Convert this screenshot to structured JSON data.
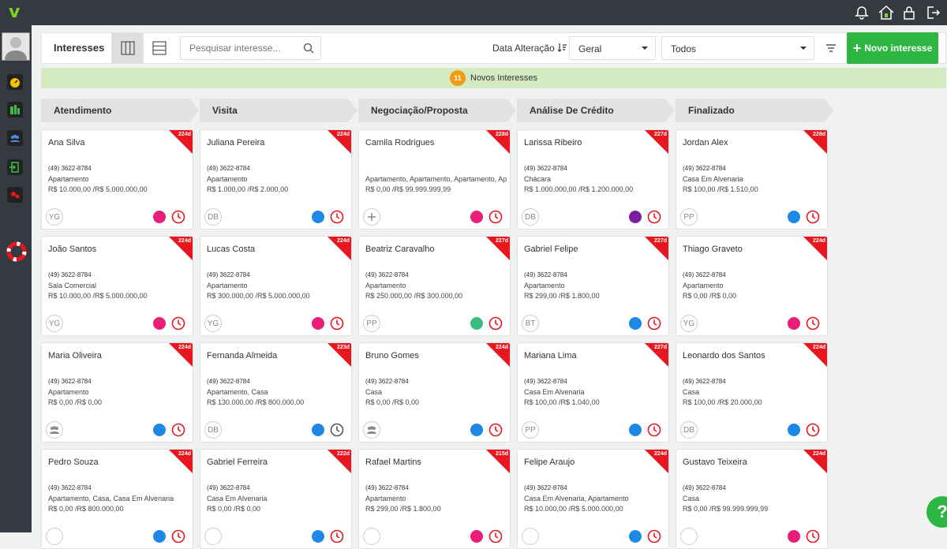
{
  "app": {
    "logo_text": "v"
  },
  "toolbar": {
    "title": "Interesses",
    "search_placeholder": "Pesquisar interesse...",
    "sort_label": "Data Alteração",
    "select_geral": "Geral",
    "select_todos": "Todos",
    "new_button_label": "Novo interesse",
    "new_button_plus": "+"
  },
  "banner": {
    "count": "11",
    "text": "Novos Interesses"
  },
  "columns": [
    {
      "title": "Atendimento"
    },
    {
      "title": "Visita"
    },
    {
      "title": "Negociação/Proposta"
    },
    {
      "title": "Análise De Crédito"
    },
    {
      "title": "Finalizado"
    }
  ],
  "cards": [
    {
      "name": "Ana Silva",
      "phone": "(49) 3622-8784",
      "type": "Apartamento",
      "price": "R$ 10.000,00 /R$ 5.000.000,00",
      "days": "224d",
      "initials": "YG",
      "dot": "#e91e78",
      "clock": "red"
    },
    {
      "name": "Juliana Pereira",
      "phone": "(49) 3622-8784",
      "type": "Apartamento",
      "price": "R$ 1.000,00 /R$ 2.000,00",
      "days": "224d",
      "initials": "DB",
      "dot": "#1e88e5",
      "clock": "red"
    },
    {
      "name": "Camila Rodrigues",
      "phone": "",
      "type": "Apartamento, Apartamento, Apartamento, Ap",
      "price": "R$ 0,00 /R$ 99.999.999,99",
      "days": "228d",
      "initials": "+",
      "dot": "#e91e78",
      "clock": "red"
    },
    {
      "name": "Larissa Ribeiro",
      "phone": "(49) 3622-8784",
      "type": "Chácara",
      "price": "R$ 1.000.000,00 /R$ 1.200.000,00",
      "days": "227d",
      "initials": "DB",
      "dot": "#7b1fa2",
      "clock": "red"
    },
    {
      "name": "Jordan Alex",
      "phone": "(49) 3622-8784",
      "type": "Casa Em Alvenaria",
      "price": "R$ 100,00 /R$ 1.510,00",
      "days": "228d",
      "initials": "PP",
      "dot": "#1e88e5",
      "clock": "red"
    },
    {
      "name": "João Santos",
      "phone": "(49) 3622-8784",
      "type": "Sala Comercial",
      "price": "R$ 10.000,00 /R$ 5.000.000,00",
      "days": "224d",
      "initials": "YG",
      "dot": "#e91e78",
      "clock": "red"
    },
    {
      "name": "Lucas Costa",
      "phone": "(49) 3622-8784",
      "type": "Apartamento",
      "price": "R$ 300.000,00 /R$ 5.000.000,00",
      "days": "224d",
      "initials": "YG",
      "dot": "#e91e78",
      "clock": "red"
    },
    {
      "name": "Beatriz Caravalho",
      "phone": "(49) 3622-8784",
      "type": "Apartamento",
      "price": "R$ 250.000,00 /R$ 300.000,00",
      "days": "227d",
      "initials": "PP",
      "dot": "#3dbb7e",
      "clock": "red"
    },
    {
      "name": "Gabriel Felipe",
      "phone": "(49) 3622-8784",
      "type": "Apartamento",
      "price": "R$ 299,00 /R$ 1.800,00",
      "days": "227d",
      "initials": "BT",
      "dot": "#1e88e5",
      "clock": "red"
    },
    {
      "name": "Thiago Graveto",
      "phone": "(49) 3622-8784",
      "type": "Apartamento",
      "price": "R$ 0,00 /R$ 0,00",
      "days": "224d",
      "initials": "YG",
      "dot": "#e91e78",
      "clock": "red"
    },
    {
      "name": "Maria Oliveira",
      "phone": "(49) 3622-8784",
      "type": "Apartamento",
      "price": "R$ 0,00 /R$ 0,00",
      "days": "224d",
      "initials": "grp",
      "dot": "#1e88e5",
      "clock": "red"
    },
    {
      "name": "Fernanda Almeida",
      "phone": "(49) 3622-8784",
      "type": "Apartamento, Casa",
      "price": "R$ 130.000,00 /R$ 800.000,00",
      "days": "223d",
      "initials": "DB",
      "dot": "#1e88e5",
      "clock": "grey"
    },
    {
      "name": "Bruno Gomes",
      "phone": "(49) 3622-8784",
      "type": "Casa",
      "price": "R$ 0,00 /R$ 0,00",
      "days": "224d",
      "initials": "grp",
      "dot": "#1e88e5",
      "clock": "red"
    },
    {
      "name": "Mariana Lima",
      "phone": "(49) 3622-8784",
      "type": "Casa Em Alvenaria",
      "price": "R$ 100,00 /R$ 1.040,00",
      "days": "227d",
      "initials": "PP",
      "dot": "#1e88e5",
      "clock": "red"
    },
    {
      "name": "Leonardo dos Santos",
      "phone": "(49) 3622-8784",
      "type": "Casa",
      "price": "R$ 100,00 /R$ 20.000,00",
      "days": "224d",
      "initials": "DB",
      "dot": "#1e88e5",
      "clock": "red"
    },
    {
      "name": "Pedro Souza",
      "phone": "(49) 3622-8784",
      "type": "Apartamento, Casa, Casa Em Alvenaria",
      "price": "R$ 0,00 /R$ 800.000,00",
      "days": "224d",
      "initials": "",
      "dot": "#1e88e5",
      "clock": "red"
    },
    {
      "name": "Gabriel Ferreira",
      "phone": "(49) 3622-8784",
      "type": "Casa Em Alvenaria",
      "price": "R$ 0,00 /R$ 0,00",
      "days": "222d",
      "initials": "",
      "dot": "#1e88e5",
      "clock": "red"
    },
    {
      "name": "Rafael Martins",
      "phone": "(49) 3622-8784",
      "type": "Apartamento",
      "price": "R$ 299,00 /R$ 1.800,00",
      "days": "215d",
      "initials": "",
      "dot": "#e91e78",
      "clock": "red"
    },
    {
      "name": "Felipe Araujo",
      "phone": "(49) 3622-8784",
      "type": "Casa Em Alvenaria, Apartamento",
      "price": "R$ 10.000,00 /R$ 5.000.000,00",
      "days": "224d",
      "initials": "",
      "dot": "#1e88e5",
      "clock": "red"
    },
    {
      "name": "Gustavo Teixeira",
      "phone": "(49) 3622-8784",
      "type": "Casa",
      "price": "R$ 0,00 /R$ 99.999.999,99",
      "days": "224d",
      "initials": "",
      "dot": "#e91e78",
      "clock": "red"
    }
  ],
  "help": {
    "label": "?"
  }
}
